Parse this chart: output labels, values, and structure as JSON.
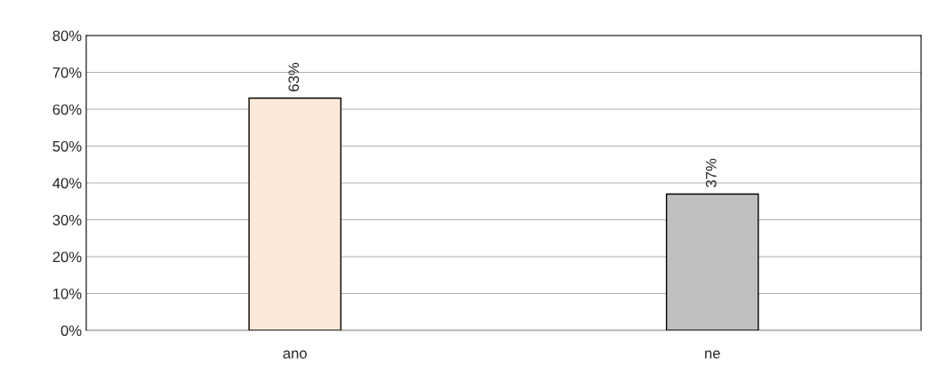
{
  "chart_data": {
    "type": "bar",
    "categories": [
      "ano",
      "ne"
    ],
    "values": [
      63,
      37
    ],
    "colors": [
      "#fde9d9",
      "#bfbfbf"
    ],
    "value_labels": [
      "63%",
      "37%"
    ],
    "ylim": [
      0,
      80
    ],
    "yticks": [
      {
        "value": 0,
        "label": "0%"
      },
      {
        "value": 10,
        "label": "10%"
      },
      {
        "value": 20,
        "label": "20%"
      },
      {
        "value": 30,
        "label": "30%"
      },
      {
        "value": 40,
        "label": "40%"
      },
      {
        "value": 50,
        "label": "50%"
      },
      {
        "value": 60,
        "label": "60%"
      },
      {
        "value": 70,
        "label": "70%"
      },
      {
        "value": 80,
        "label": "80%"
      }
    ],
    "grid": "y",
    "legend": false
  }
}
